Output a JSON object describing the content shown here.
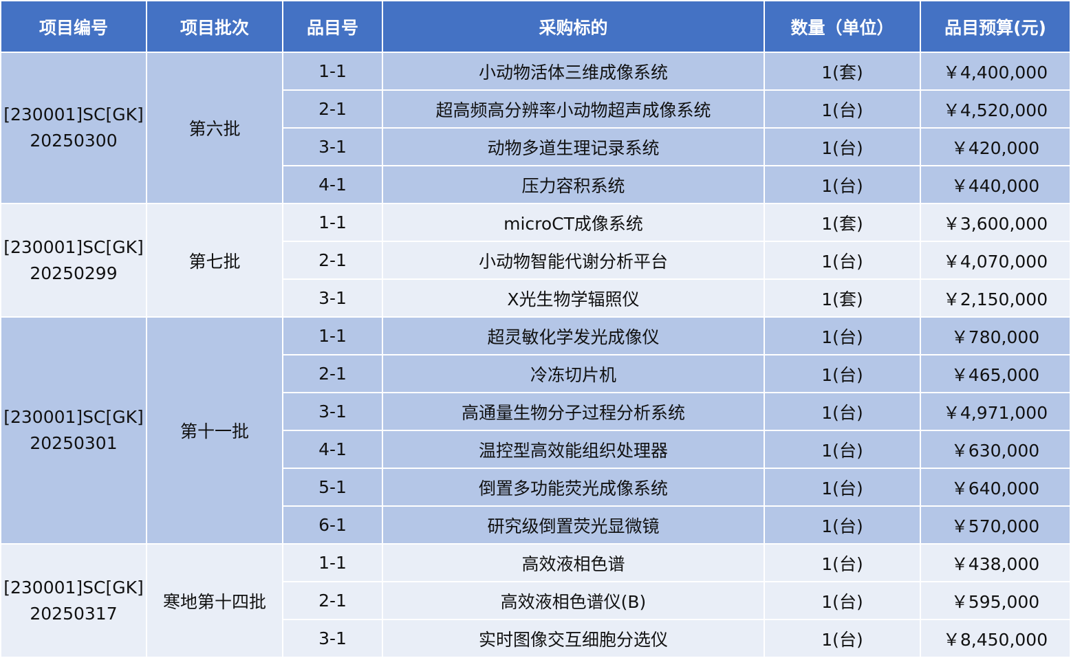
{
  "table": {
    "headers": [
      "项目编号",
      "项目批次",
      "品目号",
      "采购标的",
      "数量（单位）",
      "品目预算(元)"
    ],
    "colors": {
      "header": "#4472c4",
      "group_dark": "#b4c6e7",
      "group_light": "#e9eef7"
    },
    "groups": [
      {
        "project_no_line1": "[230001]SC[GK]",
        "project_no_line2": "20250300",
        "batch": "第六批",
        "shade": "dark",
        "items": [
          {
            "item_no": "1-1",
            "target": "小动物活体三维成像系统",
            "qty": "1(套)",
            "budget": "￥4,400,000"
          },
          {
            "item_no": "2-1",
            "target": "超高频高分辨率小动物超声成像系统",
            "qty": "1(台)",
            "budget": "￥4,520,000"
          },
          {
            "item_no": "3-1",
            "target": "动物多道生理记录系统",
            "qty": "1(台)",
            "budget": "￥420,000"
          },
          {
            "item_no": "4-1",
            "target": "压力容积系统",
            "qty": "1(台)",
            "budget": "￥440,000"
          }
        ]
      },
      {
        "project_no_line1": "[230001]SC[GK]",
        "project_no_line2": "20250299",
        "batch": "第七批",
        "shade": "light",
        "items": [
          {
            "item_no": "1-1",
            "target": "microCT成像系统",
            "qty": "1(套)",
            "budget": "￥3,600,000"
          },
          {
            "item_no": "2-1",
            "target": "小动物智能代谢分析平台",
            "qty": "1(台)",
            "budget": "￥4,070,000"
          },
          {
            "item_no": "3-1",
            "target": "X光生物学辐照仪",
            "qty": "1(套)",
            "budget": "￥2,150,000"
          }
        ]
      },
      {
        "project_no_line1": "[230001]SC[GK]",
        "project_no_line2": "20250301",
        "batch": "第十一批",
        "shade": "dark",
        "items": [
          {
            "item_no": "1-1",
            "target": "超灵敏化学发光成像仪",
            "qty": "1(台)",
            "budget": "￥780,000"
          },
          {
            "item_no": "2-1",
            "target": "冷冻切片机",
            "qty": "1(台)",
            "budget": "￥465,000"
          },
          {
            "item_no": "3-1",
            "target": "高通量生物分子过程分析系统",
            "qty": "1(台)",
            "budget": "￥4,971,000"
          },
          {
            "item_no": "4-1",
            "target": "温控型高效能组织处理器",
            "qty": "1(台)",
            "budget": "￥630,000"
          },
          {
            "item_no": "5-1",
            "target": "倒置多功能荧光成像系统",
            "qty": "1(台)",
            "budget": "￥640,000"
          },
          {
            "item_no": "6-1",
            "target": "研究级倒置荧光显微镜",
            "qty": "1(台)",
            "budget": "￥570,000"
          }
        ]
      },
      {
        "project_no_line1": "[230001]SC[GK]",
        "project_no_line2": "20250317",
        "batch": "寒地第十四批",
        "shade": "light",
        "items": [
          {
            "item_no": "1-1",
            "target": "高效液相色谱",
            "qty": "1(台)",
            "budget": "￥438,000"
          },
          {
            "item_no": "2-1",
            "target": "高效液相色谱仪(B)",
            "qty": "1(台)",
            "budget": "￥595,000"
          },
          {
            "item_no": "3-1",
            "target": "实时图像交互细胞分选仪",
            "qty": "1(台)",
            "budget": "￥8,450,000"
          }
        ]
      }
    ]
  }
}
